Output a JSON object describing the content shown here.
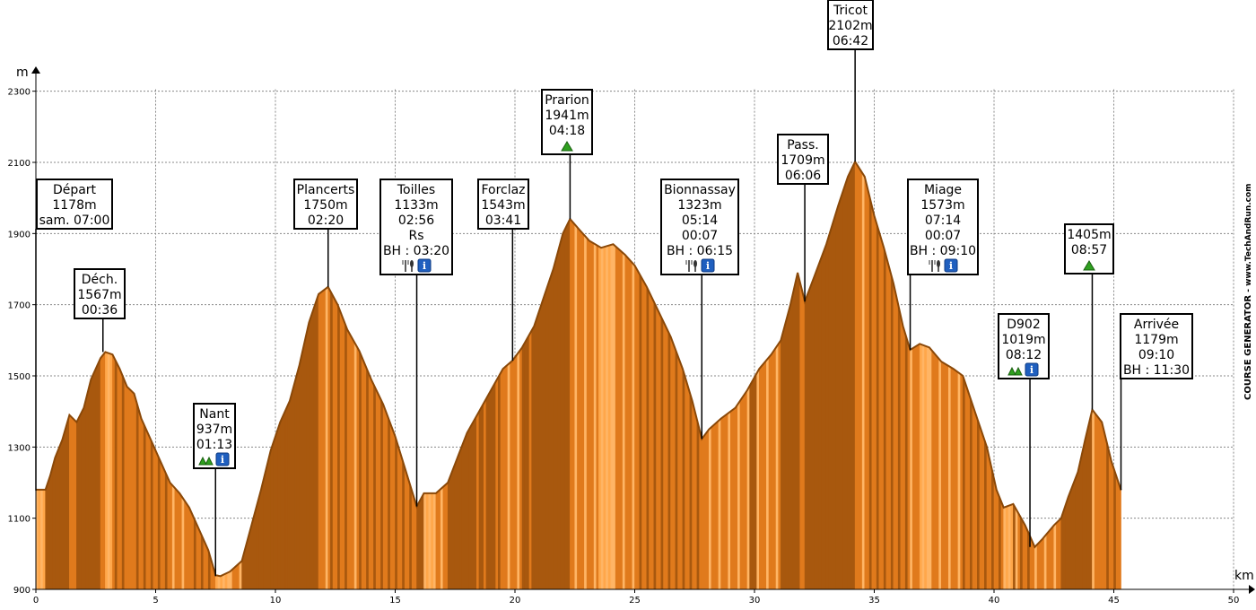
{
  "chart_data": {
    "type": "area",
    "title": "",
    "xlabel": "km",
    "ylabel": "m",
    "xlim": [
      0,
      50
    ],
    "ylim": [
      900,
      2400
    ],
    "x_ticks": [
      0,
      5,
      10,
      15,
      20,
      25,
      30,
      35,
      40,
      45,
      50
    ],
    "y_ticks": [
      900,
      1100,
      1300,
      1500,
      1700,
      1900,
      2100,
      2300
    ],
    "grid": true,
    "profile": [
      [
        0,
        1180
      ],
      [
        0.4,
        1180
      ],
      [
        0.6,
        1220
      ],
      [
        0.8,
        1270
      ],
      [
        1.1,
        1320
      ],
      [
        1.4,
        1390
      ],
      [
        1.7,
        1370
      ],
      [
        2.0,
        1410
      ],
      [
        2.3,
        1490
      ],
      [
        2.7,
        1550
      ],
      [
        2.9,
        1567
      ],
      [
        3.2,
        1560
      ],
      [
        3.5,
        1520
      ],
      [
        3.8,
        1470
      ],
      [
        4.1,
        1450
      ],
      [
        4.4,
        1380
      ],
      [
        4.8,
        1320
      ],
      [
        5.2,
        1260
      ],
      [
        5.6,
        1200
      ],
      [
        6.0,
        1170
      ],
      [
        6.4,
        1130
      ],
      [
        6.8,
        1070
      ],
      [
        7.2,
        1010
      ],
      [
        7.5,
        940
      ],
      [
        7.7,
        937
      ],
      [
        8.1,
        950
      ],
      [
        8.6,
        980
      ],
      [
        9.0,
        1080
      ],
      [
        9.4,
        1180
      ],
      [
        9.8,
        1290
      ],
      [
        10.2,
        1370
      ],
      [
        10.6,
        1430
      ],
      [
        11.0,
        1530
      ],
      [
        11.4,
        1650
      ],
      [
        11.8,
        1730
      ],
      [
        12.2,
        1750
      ],
      [
        12.6,
        1700
      ],
      [
        13.0,
        1630
      ],
      [
        13.5,
        1570
      ],
      [
        14.0,
        1490
      ],
      [
        14.5,
        1420
      ],
      [
        15.0,
        1330
      ],
      [
        15.5,
        1220
      ],
      [
        15.9,
        1133
      ],
      [
        16.2,
        1170
      ],
      [
        16.7,
        1170
      ],
      [
        17.2,
        1200
      ],
      [
        17.6,
        1270
      ],
      [
        18.0,
        1340
      ],
      [
        18.5,
        1400
      ],
      [
        19.0,
        1460
      ],
      [
        19.5,
        1520
      ],
      [
        19.9,
        1543
      ],
      [
        20.3,
        1580
      ],
      [
        20.8,
        1640
      ],
      [
        21.2,
        1720
      ],
      [
        21.6,
        1800
      ],
      [
        22.0,
        1900
      ],
      [
        22.3,
        1941
      ],
      [
        22.7,
        1910
      ],
      [
        23.1,
        1880
      ],
      [
        23.6,
        1860
      ],
      [
        24.1,
        1870
      ],
      [
        24.6,
        1840
      ],
      [
        25.0,
        1810
      ],
      [
        25.5,
        1750
      ],
      [
        26.0,
        1680
      ],
      [
        26.5,
        1610
      ],
      [
        27.0,
        1520
      ],
      [
        27.4,
        1430
      ],
      [
        27.8,
        1323
      ],
      [
        28.1,
        1350
      ],
      [
        28.6,
        1380
      ],
      [
        29.2,
        1410
      ],
      [
        29.7,
        1460
      ],
      [
        30.2,
        1520
      ],
      [
        30.7,
        1560
      ],
      [
        31.1,
        1600
      ],
      [
        31.5,
        1700
      ],
      [
        31.8,
        1790
      ],
      [
        32.1,
        1709
      ],
      [
        32.5,
        1780
      ],
      [
        33.0,
        1870
      ],
      [
        33.5,
        1980
      ],
      [
        33.9,
        2060
      ],
      [
        34.2,
        2102
      ],
      [
        34.6,
        2060
      ],
      [
        35.0,
        1950
      ],
      [
        35.4,
        1860
      ],
      [
        35.8,
        1760
      ],
      [
        36.2,
        1640
      ],
      [
        36.5,
        1573
      ],
      [
        36.9,
        1590
      ],
      [
        37.3,
        1580
      ],
      [
        37.8,
        1540
      ],
      [
        38.3,
        1520
      ],
      [
        38.7,
        1500
      ],
      [
        39.2,
        1400
      ],
      [
        39.7,
        1300
      ],
      [
        40.1,
        1180
      ],
      [
        40.4,
        1130
      ],
      [
        40.8,
        1140
      ],
      [
        41.3,
        1080
      ],
      [
        41.7,
        1019
      ],
      [
        42.0,
        1040
      ],
      [
        42.5,
        1080
      ],
      [
        42.8,
        1100
      ],
      [
        43.1,
        1160
      ],
      [
        43.5,
        1230
      ],
      [
        43.8,
        1320
      ],
      [
        44.1,
        1405
      ],
      [
        44.5,
        1370
      ],
      [
        44.9,
        1260
      ],
      [
        45.3,
        1179
      ]
    ],
    "waypoints": [
      {
        "name": "Départ",
        "km": 0.0,
        "elevation": 1178,
        "lines": [
          "Départ",
          "1178m",
          "sam. 07:00"
        ],
        "icons": []
      },
      {
        "name": "Déch.",
        "km": 2.8,
        "elevation": 1567,
        "lines": [
          "Déch.",
          "1567m",
          "00:36"
        ],
        "icons": []
      },
      {
        "name": "Nant",
        "km": 7.5,
        "elevation": 937,
        "lines": [
          "Nant",
          "937m",
          "01:13"
        ],
        "icons": [
          "water-icon",
          "info-icon"
        ]
      },
      {
        "name": "Plancerts",
        "km": 12.2,
        "elevation": 1750,
        "lines": [
          "Plancerts",
          "1750m",
          "02:20"
        ],
        "icons": []
      },
      {
        "name": "Toilles",
        "km": 15.9,
        "elevation": 1133,
        "lines": [
          "Toilles",
          "1133m",
          "02:56",
          "Rs",
          "BH : 03:20"
        ],
        "icons": [
          "food-icon",
          "info-icon"
        ]
      },
      {
        "name": "Forclaz",
        "km": 19.9,
        "elevation": 1543,
        "lines": [
          "Forclaz",
          "1543m",
          "03:41"
        ],
        "icons": []
      },
      {
        "name": "Prarion",
        "km": 22.3,
        "elevation": 1941,
        "lines": [
          "Prarion",
          "1941m",
          "04:18"
        ],
        "icons": [
          "summit-icon"
        ]
      },
      {
        "name": "Bionnassay",
        "km": 27.8,
        "elevation": 1323,
        "lines": [
          "Bionnassay",
          "1323m",
          "05:14",
          "00:07",
          "BH : 06:15"
        ],
        "icons": [
          "food-icon",
          "info-icon"
        ]
      },
      {
        "name": "Pass.",
        "km": 32.1,
        "elevation": 1709,
        "lines": [
          "Pass.",
          "1709m",
          "06:06"
        ],
        "icons": []
      },
      {
        "name": "Tricot",
        "km": 34.2,
        "elevation": 2102,
        "lines": [
          "Tricot",
          "2102m",
          "06:42"
        ],
        "icons": []
      },
      {
        "name": "Miage",
        "km": 36.5,
        "elevation": 1573,
        "lines": [
          "Miage",
          "1573m",
          "07:14",
          "00:07",
          "BH : 09:10"
        ],
        "icons": [
          "food-icon",
          "info-icon"
        ]
      },
      {
        "name": "D902",
        "km": 41.5,
        "elevation": 1019,
        "lines": [
          "D902",
          "1019m",
          "08:12"
        ],
        "icons": [
          "water-icon",
          "info-icon"
        ]
      },
      {
        "name": "1405m",
        "km": 44.1,
        "elevation": 1405,
        "lines": [
          "1405m",
          "08:57"
        ],
        "icons": [
          "summit-icon"
        ]
      },
      {
        "name": "Arrivée",
        "km": 45.3,
        "elevation": 1179,
        "lines": [
          "Arrivée",
          "1179m",
          "09:10",
          "BH : 11:30"
        ],
        "icons": []
      }
    ],
    "colors": {
      "fill_dark": "#a8580e",
      "fill_mid": "#e07a1c",
      "fill_light": "#ffb565",
      "outline": "#8a4808",
      "grid": "#888888"
    }
  },
  "credit": {
    "bold": "COURSE GENERATOR",
    "light": " - www.TechAndRun.com"
  }
}
